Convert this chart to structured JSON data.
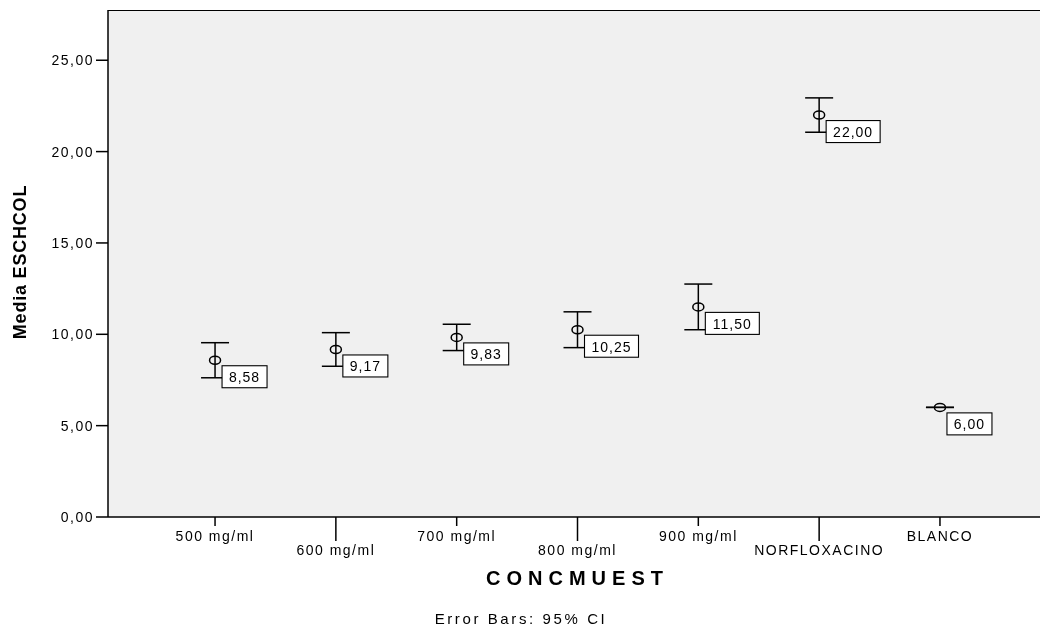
{
  "chart_data": {
    "type": "scatter",
    "xlabel": "CONCMUEST",
    "ylabel": "Media ESCHCOL",
    "annotations": [
      "Error Bars: 95% CI"
    ],
    "categories": [
      "500 mg/ml",
      "600 mg/ml",
      "700 mg/ml",
      "800 mg/ml",
      "900 mg/ml",
      "NORFLOXACINO",
      "BLANCO"
    ],
    "values": [
      8.58,
      9.17,
      9.83,
      10.25,
      11.5,
      22,
      6
    ],
    "color": "#000000",
    "errors": [
      0.96,
      0.92,
      0.72,
      0.98,
      1.25,
      0.94,
      0
    ],
    "value_labels": [
      "8,58",
      "9,17",
      "9,83",
      "10,25",
      "11,50",
      "22,00",
      "6,00"
    ],
    "ylim": [
      0,
      27.75
    ],
    "yticks": [
      {
        "value": 0,
        "label": "0,00"
      },
      {
        "value": 5,
        "label": "5,00"
      },
      {
        "value": 10,
        "label": "10,00"
      },
      {
        "value": 15,
        "label": "15,00"
      },
      {
        "value": 20,
        "label": "20,00"
      },
      {
        "value": 25,
        "label": "25,00"
      }
    ],
    "marker": "circle"
  }
}
